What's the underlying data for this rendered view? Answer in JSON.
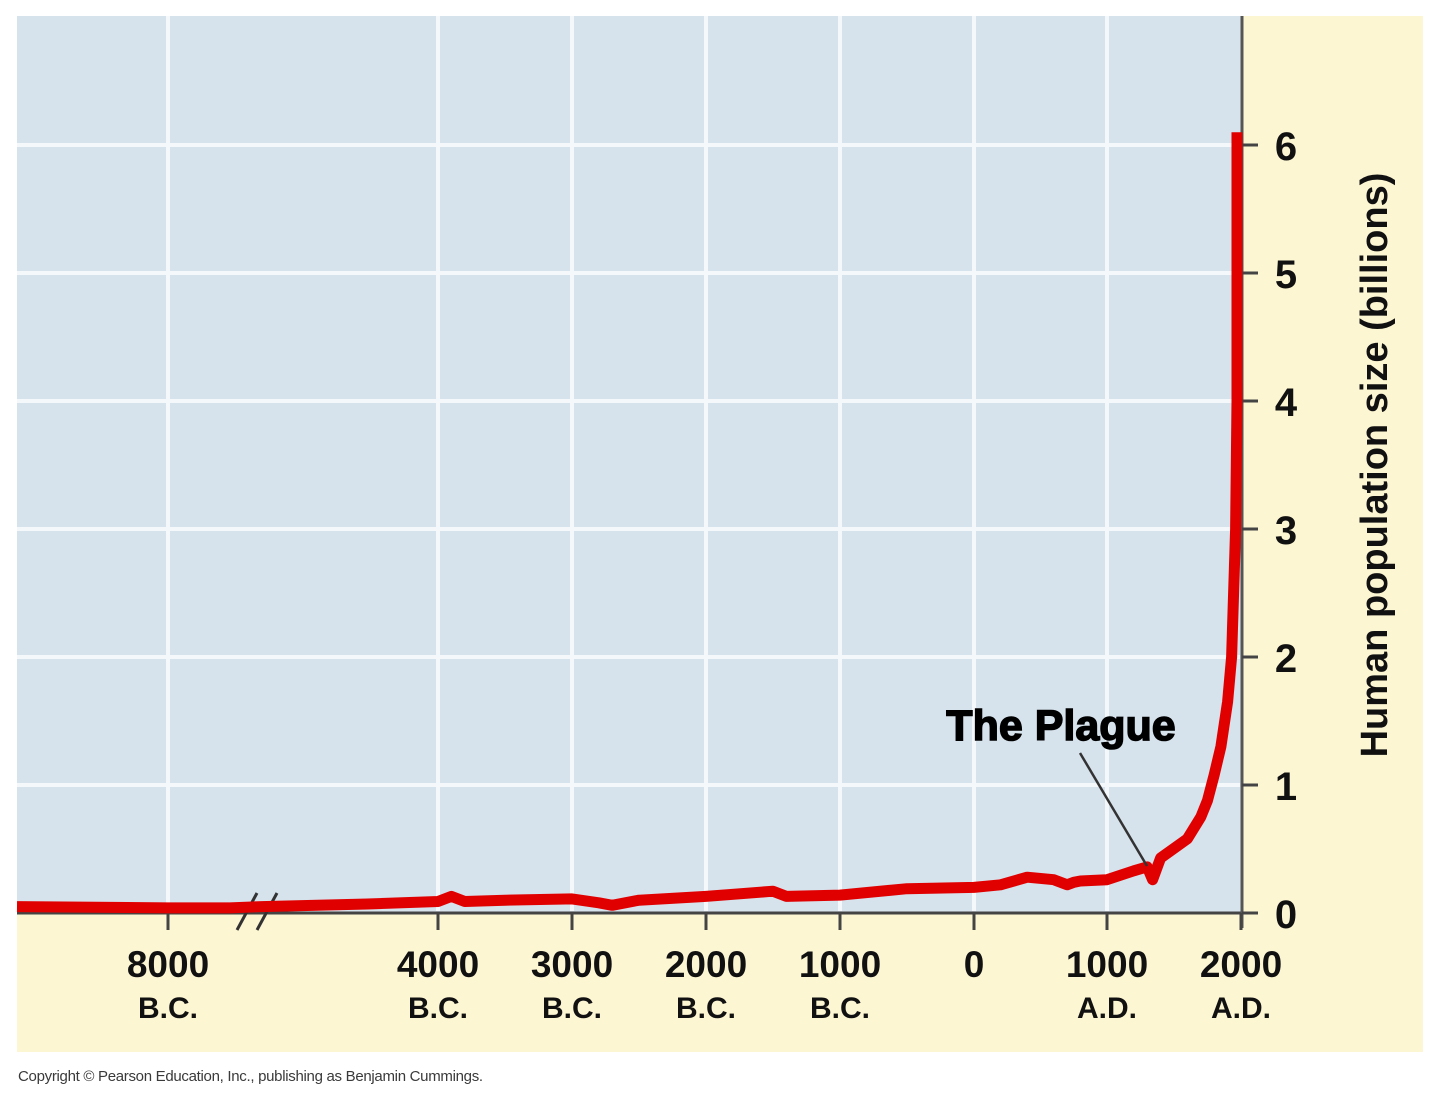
{
  "chart_data": {
    "type": "line",
    "title": "",
    "xlabel": "",
    "ylabel": "Human population size (billions)",
    "ylim": [
      0,
      6.5
    ],
    "y_ticks": [
      "0",
      "1",
      "2",
      "3",
      "4",
      "5",
      "6"
    ],
    "x_ticks": [
      {
        "year": "8000",
        "era": "B.C."
      },
      {
        "year": "4000",
        "era": "B.C."
      },
      {
        "year": "3000",
        "era": "B.C."
      },
      {
        "year": "2000",
        "era": "B.C."
      },
      {
        "year": "1000",
        "era": "B.C."
      },
      {
        "year": "0",
        "era": ""
      },
      {
        "year": "1000",
        "era": "A.D."
      },
      {
        "year": "2000",
        "era": "A.D."
      }
    ],
    "axis_break": "between 8000 B.C. and 4000 B.C.",
    "grid": true,
    "series": [
      {
        "name": "Human population",
        "color": "#e00000",
        "x": [
          -9100,
          -8000,
          -7000,
          -6500,
          -5000,
          -4000,
          -3900,
          -3800,
          -3500,
          -3000,
          -2800,
          -2700,
          -2500,
          -2000,
          -1500,
          -1400,
          -1000,
          -500,
          0,
          200,
          400,
          600,
          700,
          750,
          800,
          1000,
          1200,
          1300,
          1340,
          1400,
          1600,
          1700,
          1750,
          1800,
          1850,
          1900,
          1930,
          1960,
          1975,
          1987,
          1999
        ],
        "values": [
          0.05,
          0.04,
          0.04,
          0.05,
          0.07,
          0.09,
          0.13,
          0.09,
          0.1,
          0.11,
          0.08,
          0.06,
          0.1,
          0.13,
          0.17,
          0.13,
          0.14,
          0.19,
          0.2,
          0.22,
          0.28,
          0.26,
          0.22,
          0.24,
          0.25,
          0.26,
          0.33,
          0.36,
          0.26,
          0.43,
          0.58,
          0.75,
          0.88,
          1.08,
          1.3,
          1.65,
          2.0,
          3.0,
          4.0,
          5.0,
          6.1
        ]
      }
    ],
    "annotations": [
      {
        "text": "The Plague",
        "x": 1340,
        "y": 0.3
      }
    ]
  },
  "footer": {
    "copyright": "Copyright © Pearson Education, Inc., publishing as Benjamin Cummings."
  },
  "colors": {
    "plot_background": "#d6e2ec",
    "frame_background": "#fdf6d3",
    "grid": "#f4f8fb",
    "line": "#e00000",
    "axis": "#444444"
  }
}
